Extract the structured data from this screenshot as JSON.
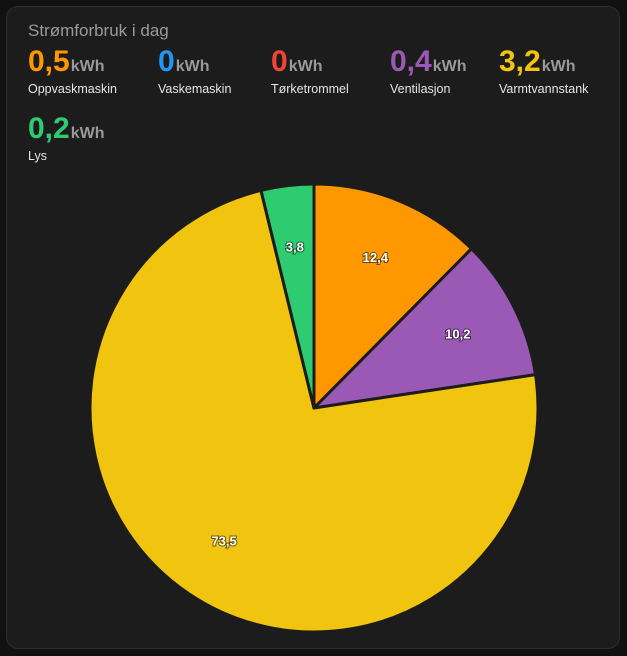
{
  "card": {
    "title": "Strømforbruk i dag"
  },
  "stats": [
    {
      "value": "0,5",
      "unit": "kWh",
      "label": "Oppvaskmaskin",
      "color": "#ff9800"
    },
    {
      "value": "0",
      "unit": "kWh",
      "label": "Vaskemaskin",
      "color": "#2196f3"
    },
    {
      "value": "0",
      "unit": "kWh",
      "label": "Tørketrommel",
      "color": "#f44336"
    },
    {
      "value": "0,4",
      "unit": "kWh",
      "label": "Ventilasjon",
      "color": "#9b59b6"
    },
    {
      "value": "3,2",
      "unit": "kWh",
      "label": "Varmtvannstank",
      "color": "#f1c40f"
    },
    {
      "value": "0,2",
      "unit": "kWh",
      "label": "Lys",
      "color": "#2ecc71"
    }
  ],
  "chart_data": {
    "type": "pie",
    "categories": [
      "Oppvaskmaskin",
      "Ventilasjon",
      "Varmtvannstank",
      "Lys"
    ],
    "values": [
      12.4,
      10.2,
      73.5,
      3.8
    ],
    "value_labels": [
      "12,4",
      "10,2",
      "73,5",
      "3,8"
    ],
    "colors": [
      "#ff9800",
      "#9b59b6",
      "#f1c40f",
      "#2ecc71"
    ],
    "start": "top",
    "direction": "clockwise"
  }
}
